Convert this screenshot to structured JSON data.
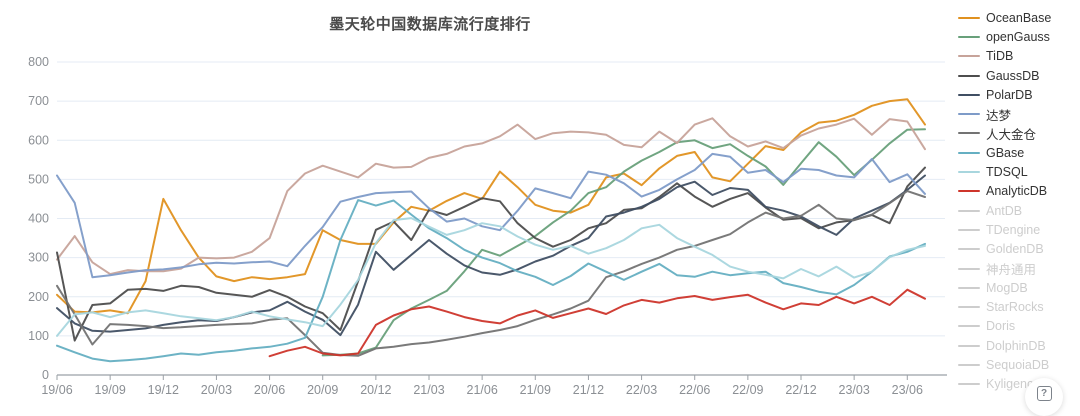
{
  "help": {
    "label": "?"
  },
  "chart_data": {
    "type": "line",
    "title": "墨天轮中国数据库流行度排行",
    "xlabel": "",
    "ylabel": "",
    "ylim": [
      0,
      800
    ],
    "y_ticks": [
      0,
      100,
      200,
      300,
      400,
      500,
      600,
      700,
      800
    ],
    "x": [
      "19/06",
      "19/07",
      "19/08",
      "19/09",
      "19/10",
      "19/11",
      "19/12",
      "20/01",
      "20/02",
      "20/03",
      "20/04",
      "20/05",
      "20/06",
      "20/07",
      "20/08",
      "20/09",
      "20/10",
      "20/11",
      "20/12",
      "21/01",
      "21/02",
      "21/03",
      "21/04",
      "21/05",
      "21/06",
      "21/07",
      "21/08",
      "21/09",
      "21/10",
      "21/11",
      "21/12",
      "22/01",
      "22/02",
      "22/03",
      "22/04",
      "22/05",
      "22/06",
      "22/07",
      "22/08",
      "22/09",
      "22/10",
      "22/11",
      "22/12",
      "23/01",
      "23/02",
      "23/03",
      "23/04",
      "23/05",
      "23/06",
      "23/07"
    ],
    "x_tick_labels": [
      "19/06",
      "19/09",
      "19/12",
      "20/03",
      "20/06",
      "20/09",
      "20/12",
      "21/03",
      "21/06",
      "21/09",
      "21/12",
      "22/03",
      "22/06",
      "22/09",
      "22/12",
      "23/03",
      "23/06"
    ],
    "grid": true,
    "legend_position": "right",
    "colors": {
      "grid": "#e4ebf4",
      "axis": "#9aa0a6",
      "tick_label": "#8b8f94",
      "title": "#4a4a4a",
      "legend_disabled": "#cdcdcd"
    },
    "series": [
      {
        "name": "OceanBase",
        "color": "#e0911f",
        "enabled": true,
        "values": [
          205,
          162,
          160,
          165,
          158,
          240,
          450,
          370,
          300,
          252,
          240,
          250,
          245,
          250,
          258,
          370,
          345,
          335,
          335,
          390,
          430,
          420,
          445,
          465,
          450,
          520,
          480,
          435,
          420,
          415,
          435,
          505,
          515,
          485,
          528,
          560,
          570,
          505,
          495,
          540,
          585,
          575,
          620,
          645,
          650,
          665,
          688,
          700,
          705,
          640
        ]
      },
      {
        "name": "openGauss",
        "color": "#68a07a",
        "enabled": true,
        "values": [
          null,
          null,
          null,
          null,
          null,
          null,
          null,
          null,
          null,
          null,
          null,
          null,
          null,
          null,
          null,
          50,
          52,
          55,
          70,
          140,
          170,
          192,
          215,
          265,
          320,
          305,
          330,
          355,
          390,
          420,
          465,
          480,
          520,
          548,
          570,
          595,
          600,
          580,
          590,
          560,
          533,
          486,
          541,
          595,
          558,
          511,
          550,
          592,
          627,
          628
        ]
      },
      {
        "name": "TiDB",
        "color": "#c7a39a",
        "enabled": true,
        "values": [
          295,
          355,
          288,
          258,
          268,
          265,
          265,
          272,
          300,
          298,
          300,
          315,
          350,
          470,
          515,
          535,
          520,
          505,
          540,
          530,
          532,
          555,
          565,
          584,
          592,
          610,
          640,
          603,
          618,
          622,
          620,
          614,
          588,
          582,
          622,
          593,
          640,
          656,
          610,
          584,
          597,
          580,
          612,
          630,
          640,
          655,
          614,
          654,
          648,
          577
        ]
      },
      {
        "name": "GaussDB",
        "color": "#4d4d4d",
        "enabled": true,
        "values": [
          313,
          88,
          179,
          183,
          218,
          220,
          215,
          228,
          225,
          210,
          205,
          200,
          217,
          200,
          175,
          158,
          115,
          240,
          371,
          392,
          345,
          422,
          409,
          430,
          452,
          444,
          388,
          350,
          328,
          345,
          375,
          388,
          422,
          426,
          455,
          490,
          456,
          430,
          450,
          465,
          428,
          397,
          401,
          375,
          390,
          396,
          409,
          388,
          482,
          530
        ]
      },
      {
        "name": "PolarDB",
        "color": "#404f63",
        "enabled": true,
        "values": [
          171,
          132,
          113,
          111,
          115,
          119,
          128,
          135,
          140,
          138,
          148,
          160,
          165,
          187,
          162,
          141,
          102,
          180,
          315,
          269,
          307,
          345,
          310,
          280,
          262,
          256,
          270,
          290,
          305,
          330,
          350,
          405,
          415,
          430,
          450,
          480,
          494,
          460,
          478,
          473,
          430,
          420,
          405,
          380,
          358,
          400,
          420,
          440,
          473,
          510
        ]
      },
      {
        "name": "达梦",
        "color": "#7e9bc8",
        "enabled": true,
        "values": [
          510,
          440,
          250,
          255,
          262,
          268,
          270,
          275,
          283,
          287,
          285,
          288,
          290,
          278,
          330,
          378,
          443,
          455,
          465,
          467,
          469,
          426,
          392,
          400,
          380,
          370,
          420,
          477,
          465,
          452,
          520,
          512,
          490,
          456,
          473,
          500,
          524,
          565,
          558,
          517,
          524,
          493,
          527,
          524,
          510,
          505,
          552,
          493,
          513,
          463
        ]
      },
      {
        "name": "人大金仓",
        "color": "#737373",
        "enabled": true,
        "values": [
          228,
          155,
          78,
          130,
          128,
          125,
          120,
          122,
          125,
          128,
          130,
          132,
          141,
          145,
          102,
          57,
          51,
          49,
          68,
          72,
          79,
          83,
          90,
          98,
          107,
          115,
          125,
          141,
          155,
          170,
          190,
          250,
          265,
          284,
          300,
          320,
          330,
          345,
          360,
          390,
          415,
          400,
          407,
          435,
          400,
          396,
          410,
          439,
          470,
          455
        ]
      },
      {
        "name": "GBase",
        "color": "#65afc2",
        "enabled": true,
        "values": [
          75,
          58,
          42,
          35,
          38,
          42,
          48,
          55,
          52,
          58,
          62,
          68,
          72,
          80,
          95,
          200,
          345,
          447,
          433,
          446,
          410,
          375,
          350,
          320,
          300,
          286,
          265,
          251,
          230,
          253,
          285,
          264,
          243,
          264,
          284,
          255,
          251,
          264,
          255,
          260,
          264,
          235,
          225,
          213,
          206,
          230,
          264,
          303,
          315,
          335
        ]
      },
      {
        "name": "TDSQL",
        "color": "#a8d6de",
        "enabled": true,
        "values": [
          100,
          155,
          160,
          148,
          160,
          165,
          158,
          150,
          145,
          140,
          148,
          162,
          150,
          142,
          135,
          125,
          180,
          243,
          337,
          396,
          401,
          379,
          358,
          370,
          388,
          380,
          354,
          333,
          320,
          330,
          310,
          324,
          345,
          375,
          384,
          350,
          328,
          307,
          277,
          264,
          256,
          247,
          271,
          252,
          277,
          249,
          264,
          301,
          320,
          330
        ]
      },
      {
        "name": "AnalyticDB",
        "color": "#ce352b",
        "enabled": true,
        "values": [
          null,
          null,
          null,
          null,
          null,
          null,
          null,
          null,
          null,
          null,
          null,
          null,
          48,
          62,
          72,
          55,
          50,
          55,
          128,
          152,
          168,
          175,
          162,
          148,
          138,
          132,
          152,
          165,
          146,
          158,
          170,
          156,
          178,
          192,
          185,
          196,
          202,
          192,
          199,
          205,
          185,
          168,
          183,
          179,
          200,
          183,
          200,
          179,
          218,
          195
        ]
      },
      {
        "name": "AntDB",
        "color": "#cdcdcd",
        "enabled": false,
        "values": []
      },
      {
        "name": "TDengine",
        "color": "#cdcdcd",
        "enabled": false,
        "values": []
      },
      {
        "name": "GoldenDB",
        "color": "#cdcdcd",
        "enabled": false,
        "values": []
      },
      {
        "name": "神舟通用",
        "color": "#cdcdcd",
        "enabled": false,
        "values": []
      },
      {
        "name": "MogDB",
        "color": "#cdcdcd",
        "enabled": false,
        "values": []
      },
      {
        "name": "StarRocks",
        "color": "#cdcdcd",
        "enabled": false,
        "values": []
      },
      {
        "name": "Doris",
        "color": "#cdcdcd",
        "enabled": false,
        "values": []
      },
      {
        "name": "DolphinDB",
        "color": "#cdcdcd",
        "enabled": false,
        "values": []
      },
      {
        "name": "SequoiaDB",
        "color": "#cdcdcd",
        "enabled": false,
        "values": []
      },
      {
        "name": "Kyligence",
        "color": "#cdcdcd",
        "enabled": false,
        "values": []
      }
    ]
  }
}
